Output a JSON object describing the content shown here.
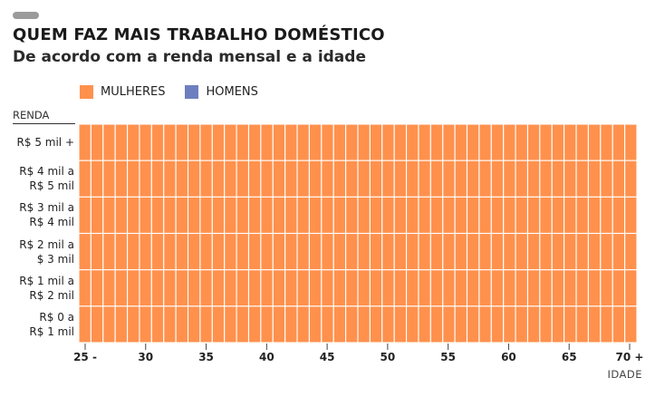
{
  "chart_data": {
    "type": "heatmap",
    "title": "QUEM FAZ MAIS TRABALHO DOMÉSTICO",
    "subtitle": "De acordo com a renda mensal e a idade",
    "ylabel": "RENDA",
    "xlabel": "IDADE",
    "legend": {
      "placement": "top-left",
      "entries": [
        {
          "name": "MULHERES",
          "color": "#FF914D"
        },
        {
          "name": "HOMENS",
          "color": "#6E7FBF"
        }
      ]
    },
    "income_brackets": [
      "R$ 5 mil +",
      "R$ 4 mil a\nR$ 5 mil",
      "R$ 3 mil a\nR$ 4 mil",
      "R$ 2 mil a\n$ 3 mil",
      "R$ 1 mil a\nR$ 2 mil",
      "R$ 0 a\nR$ 1 mil"
    ],
    "age_range": [
      25,
      70
    ],
    "x_ticks": [
      {
        "value": 25,
        "label": "25 -"
      },
      {
        "value": 30,
        "label": "30"
      },
      {
        "value": 35,
        "label": "35"
      },
      {
        "value": 40,
        "label": "40"
      },
      {
        "value": 45,
        "label": "45"
      },
      {
        "value": 50,
        "label": "50"
      },
      {
        "value": 55,
        "label": "55"
      },
      {
        "value": 60,
        "label": "60"
      },
      {
        "value": 65,
        "label": "65"
      },
      {
        "value": 70,
        "label": "70 +"
      }
    ],
    "cell_value_all": "MULHERES",
    "grid_line_color": "#FFFFFF"
  }
}
